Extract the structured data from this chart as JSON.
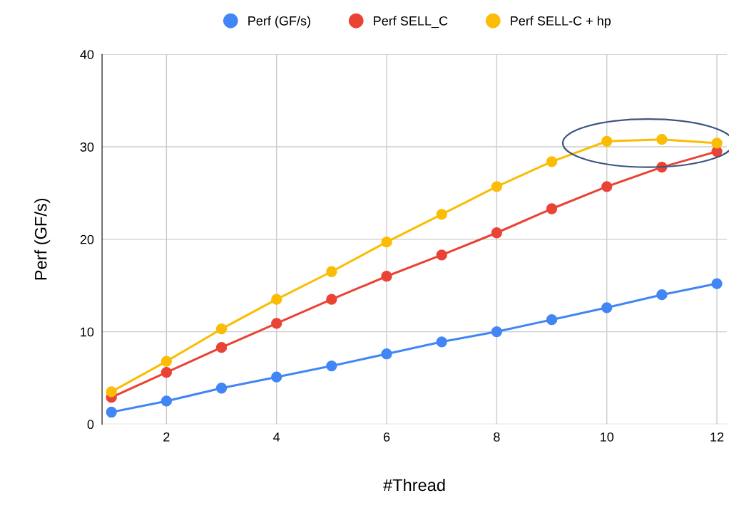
{
  "chart_data": {
    "type": "line",
    "xlabel": "#Thread",
    "ylabel": "Perf (GF/s)",
    "x": [
      1,
      2,
      3,
      4,
      5,
      6,
      7,
      8,
      9,
      10,
      11,
      12
    ],
    "series": [
      {
        "name": "Perf (GF/s)",
        "color": "#4285f4",
        "values": [
          1.3,
          2.5,
          3.9,
          5.1,
          6.3,
          7.6,
          8.9,
          10.0,
          11.3,
          12.6,
          14.0,
          15.2
        ]
      },
      {
        "name": "Perf SELL_C",
        "color": "#ea4335",
        "values": [
          2.9,
          5.6,
          8.3,
          10.9,
          13.5,
          16.0,
          18.3,
          20.7,
          23.3,
          25.7,
          27.8,
          29.5
        ]
      },
      {
        "name": "Perf SELL-C + hp",
        "color": "#fbbc04",
        "values": [
          3.5,
          6.8,
          10.3,
          13.5,
          16.5,
          19.7,
          22.7,
          25.7,
          28.4,
          30.6,
          30.8,
          30.4
        ]
      }
    ],
    "xlim": [
      0.83,
      12.18
    ],
    "xticks": [
      2,
      4,
      6,
      8,
      10,
      12
    ],
    "ylim": [
      0,
      40
    ],
    "yticks": [
      0,
      10,
      20,
      30,
      40
    ],
    "grid": true,
    "legend": "top",
    "marker": "circle",
    "line_style": "solid"
  }
}
